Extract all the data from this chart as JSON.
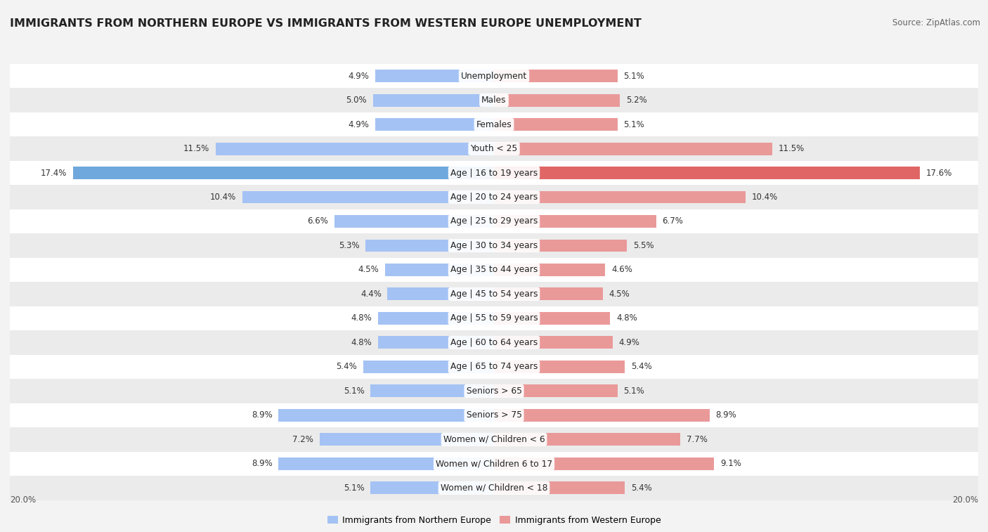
{
  "title": "IMMIGRANTS FROM NORTHERN EUROPE VS IMMIGRANTS FROM WESTERN EUROPE UNEMPLOYMENT",
  "source": "Source: ZipAtlas.com",
  "categories": [
    "Unemployment",
    "Males",
    "Females",
    "Youth < 25",
    "Age | 16 to 19 years",
    "Age | 20 to 24 years",
    "Age | 25 to 29 years",
    "Age | 30 to 34 years",
    "Age | 35 to 44 years",
    "Age | 45 to 54 years",
    "Age | 55 to 59 years",
    "Age | 60 to 64 years",
    "Age | 65 to 74 years",
    "Seniors > 65",
    "Seniors > 75",
    "Women w/ Children < 6",
    "Women w/ Children 6 to 17",
    "Women w/ Children < 18"
  ],
  "left_values": [
    4.9,
    5.0,
    4.9,
    11.5,
    17.4,
    10.4,
    6.6,
    5.3,
    4.5,
    4.4,
    4.8,
    4.8,
    5.4,
    5.1,
    8.9,
    7.2,
    8.9,
    5.1
  ],
  "right_values": [
    5.1,
    5.2,
    5.1,
    11.5,
    17.6,
    10.4,
    6.7,
    5.5,
    4.6,
    4.5,
    4.8,
    4.9,
    5.4,
    5.1,
    8.9,
    7.7,
    9.1,
    5.4
  ],
  "left_color": "#a4c2f4",
  "right_color": "#ea9999",
  "highlight_left_color": "#6fa8dc",
  "highlight_right_color": "#e06666",
  "highlight_indices": [
    4
  ],
  "axis_max": 20.0,
  "legend_left": "Immigrants from Northern Europe",
  "legend_right": "Immigrants from Western Europe",
  "background_color": "#f3f3f3",
  "row_colors": [
    "#ffffff",
    "#ebebeb"
  ],
  "title_fontsize": 11.5,
  "source_fontsize": 8.5,
  "label_fontsize": 8.8,
  "value_fontsize": 8.5,
  "axis_label_fontsize": 8.5
}
